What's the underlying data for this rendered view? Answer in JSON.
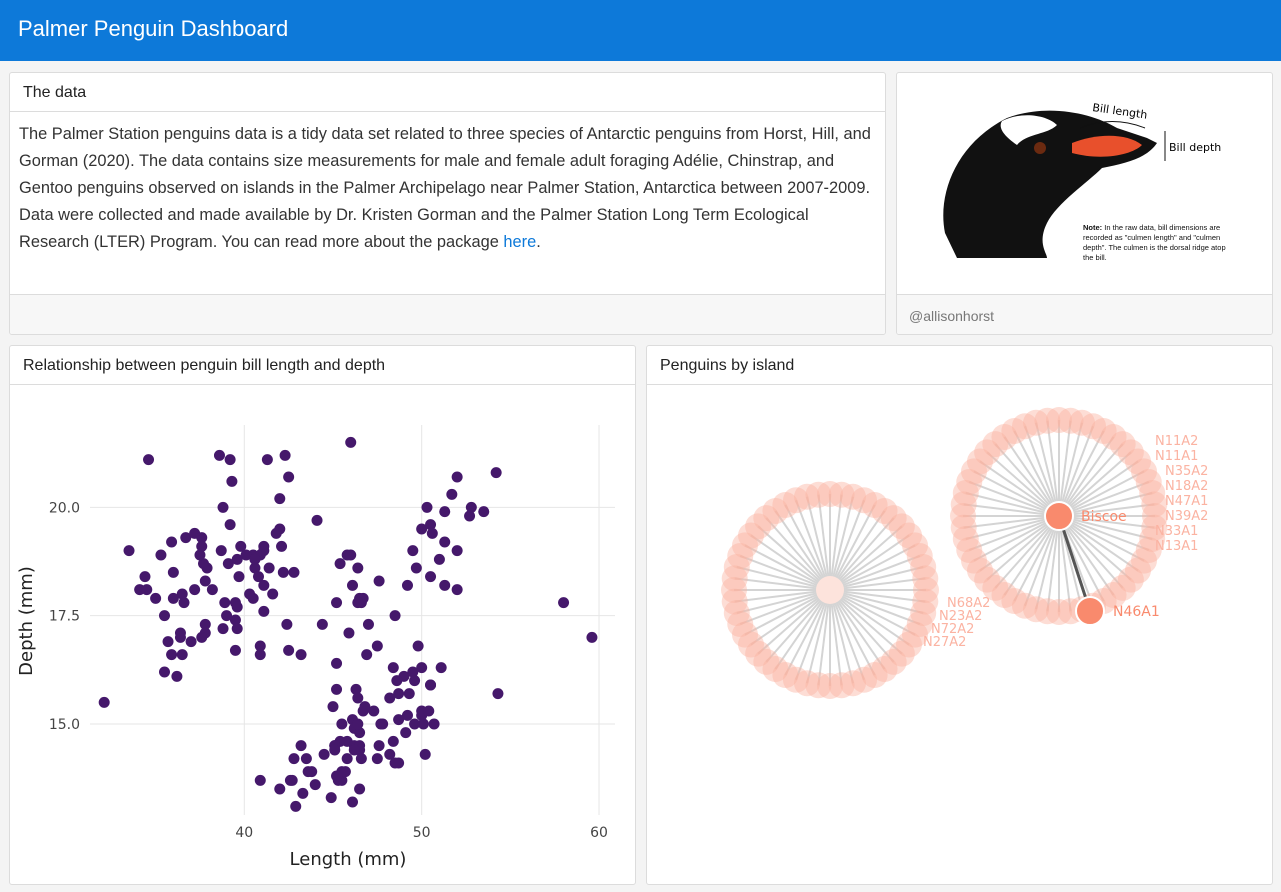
{
  "header": {
    "title": "Palmer Penguin Dashboard"
  },
  "data_card": {
    "title": "The data",
    "body": "The Palmer Station penguins data is a tidy data set related to three species of Antarctic penguins from Horst, Hill, and Gorman (2020). The data contains size measurements for male and female adult foraging Adélie, Chinstrap, and Gentoo penguins observed on islands in the Palmer Archipelago near Palmer Station, Antarctica between 2007-2009. Data were collected and made available by Dr. Kristen Gorman and the Palmer Station Long Term Ecological Research (LTER) Program. You can read more about the package ",
    "link": "here",
    "body_end": "."
  },
  "image_card": {
    "bill_length": "Bill length",
    "bill_depth": "Bill depth",
    "note_label": "Note:",
    "note": "In the raw data, bill dimensions are recorded as \"culmen length\" and \"culmen depth\". The culmen is the dorsal ridge atop the bill.",
    "footer": "@allisonhorst"
  },
  "scatter_card": {
    "title": "Relationship between penguin bill length and depth"
  },
  "network_card": {
    "title": "Penguins by island",
    "island": "Biscoe",
    "selected": "N46A1",
    "right_labels": [
      "N11A2",
      "N11A1",
      "N35A2",
      "N18A2",
      "N47A1",
      "N39A2",
      "N33A1",
      "N13A1"
    ],
    "left_labels": [
      "N68A2",
      "N23A2",
      "N72A2",
      "N27A2"
    ]
  },
  "chart_data": {
    "type": "scatter",
    "xlabel": "Length (mm)",
    "ylabel": "Depth (mm)",
    "color": "#45186b",
    "grid": true,
    "xlim": [
      31.3,
      60.9
    ],
    "ylim": [
      12.9,
      21.9
    ],
    "xticks": [
      40,
      50,
      60
    ],
    "yticks": [
      {
        "value": 15,
        "label": "15.0"
      },
      17.5,
      {
        "value": 20,
        "label": "20.0"
      }
    ],
    "x": [
      39.1,
      39.5,
      40.3,
      36.7,
      39.3,
      38.9,
      39.2,
      34.1,
      42.0,
      37.8,
      37.8,
      41.1,
      38.6,
      34.6,
      36.6,
      38.7,
      42.5,
      34.4,
      46.0,
      37.8,
      37.7,
      35.9,
      38.2,
      38.8,
      35.3,
      40.6,
      40.5,
      37.9,
      40.5,
      39.5,
      37.2,
      39.5,
      40.9,
      36.4,
      39.2,
      38.8,
      42.2,
      37.6,
      39.8,
      36.5,
      40.8,
      36.0,
      44.1,
      37.0,
      39.6,
      41.1,
      37.5,
      36.0,
      42.3,
      39.6,
      40.1,
      35.0,
      42.0,
      34.5,
      41.4,
      39.0,
      40.6,
      36.5,
      37.6,
      35.7,
      41.3,
      37.6,
      41.1,
      36.4,
      41.6,
      35.5,
      41.1,
      35.9,
      41.8,
      33.5,
      39.7,
      39.6,
      45.8,
      35.5,
      42.8,
      40.9,
      37.2,
      36.2,
      42.1,
      32.1,
      46.1,
      50.0,
      48.7,
      50.0,
      47.6,
      46.5,
      45.4,
      46.7,
      43.3,
      46.8,
      40.9,
      49.0,
      45.5,
      48.4,
      45.8,
      49.3,
      42.0,
      49.2,
      46.2,
      48.7,
      50.2,
      45.1,
      46.5,
      46.3,
      42.9,
      46.1,
      44.5,
      47.8,
      48.2,
      50.0,
      47.3,
      42.8,
      45.1,
      59.6,
      49.1,
      48.4,
      42.6,
      44.4,
      44.0,
      48.7,
      42.7,
      49.6,
      45.3,
      49.6,
      50.5,
      43.6,
      45.5,
      50.5,
      44.9,
      45.2,
      46.6,
      48.5,
      45.1,
      50.1,
      46.5,
      45.0,
      43.8,
      45.5,
      43.2,
      50.4,
      45.3,
      46.2,
      45.7,
      54.3,
      45.8,
      49.8,
      46.2,
      49.5,
      43.5,
      50.7,
      47.7,
      46.4,
      48.2,
      46.5,
      46.4,
      48.6,
      47.5,
      51.1,
      45.2,
      45.2,
      46.5,
      50.0,
      51.3,
      45.4,
      52.7,
      45.2,
      46.1,
      51.3,
      46.0,
      51.3,
      46.6,
      51.7,
      47.0,
      52.0,
      45.9,
      50.5,
      50.3,
      58.0,
      46.4,
      49.2,
      42.4,
      48.5,
      43.2,
      50.6,
      46.7,
      52.0,
      50.5,
      49.5,
      46.4,
      52.8,
      40.9,
      54.2,
      42.5,
      51.0,
      49.7,
      47.5,
      47.6,
      52.0,
      46.9,
      53.5
    ],
    "values": [
      18.7,
      17.4,
      18.0,
      19.3,
      20.6,
      17.8,
      19.6,
      18.1,
      20.2,
      17.1,
      17.3,
      17.6,
      21.2,
      21.1,
      17.8,
      19.0,
      20.7,
      18.4,
      21.5,
      18.3,
      18.7,
      19.2,
      18.1,
      17.2,
      18.9,
      18.6,
      17.9,
      18.6,
      18.9,
      16.7,
      18.1,
      17.8,
      18.9,
      17.0,
      21.1,
      20.0,
      18.5,
      19.3,
      19.1,
      18.0,
      18.4,
      18.5,
      19.7,
      16.9,
      18.8,
      19.0,
      18.9,
      17.9,
      21.2,
      17.7,
      18.9,
      17.9,
      19.5,
      18.1,
      18.6,
      17.5,
      18.8,
      16.6,
      19.1,
      16.9,
      21.1,
      17.0,
      18.2,
      17.1,
      18.0,
      16.2,
      19.1,
      16.6,
      19.4,
      19.0,
      18.4,
      17.2,
      18.9,
      17.5,
      18.5,
      16.8,
      19.4,
      16.1,
      19.1,
      15.5,
      13.2,
      16.3,
      14.1,
      15.2,
      14.5,
      13.5,
      14.6,
      15.3,
      13.4,
      15.4,
      13.7,
      16.1,
      13.7,
      14.6,
      14.6,
      15.7,
      13.5,
      15.2,
      14.5,
      15.1,
      14.3,
      14.5,
      14.5,
      15.8,
      13.1,
      15.1,
      14.3,
      15.0,
      14.3,
      15.3,
      15.3,
      14.2,
      14.5,
      17.0,
      14.8,
      16.3,
      13.7,
      17.3,
      13.6,
      15.7,
      13.7,
      16.0,
      13.7,
      15.0,
      15.9,
      13.9,
      13.9,
      15.9,
      13.3,
      15.8,
      14.2,
      14.1,
      14.4,
      15.0,
      14.4,
      15.4,
      13.9,
      15.0,
      14.5,
      15.3,
      13.8,
      14.9,
      13.9,
      15.7,
      14.2,
      16.8,
      14.4,
      16.2,
      14.2,
      15.0,
      15.0,
      15.6,
      15.6,
      14.8,
      15.0,
      16.0,
      14.2,
      16.3,
      13.8,
      16.4,
      17.9,
      19.5,
      19.2,
      18.7,
      19.8,
      17.8,
      18.2,
      18.2,
      18.9,
      19.9,
      17.8,
      20.3,
      17.3,
      18.1,
      17.1,
      19.6,
      20.0,
      17.8,
      18.6,
      18.2,
      17.3,
      17.5,
      16.6,
      19.4,
      17.9,
      19.0,
      18.4,
      19.0,
      17.8,
      20.0,
      16.6,
      20.8,
      16.7,
      18.8,
      18.6,
      16.8,
      18.3,
      20.7,
      16.6,
      19.9
    ]
  }
}
